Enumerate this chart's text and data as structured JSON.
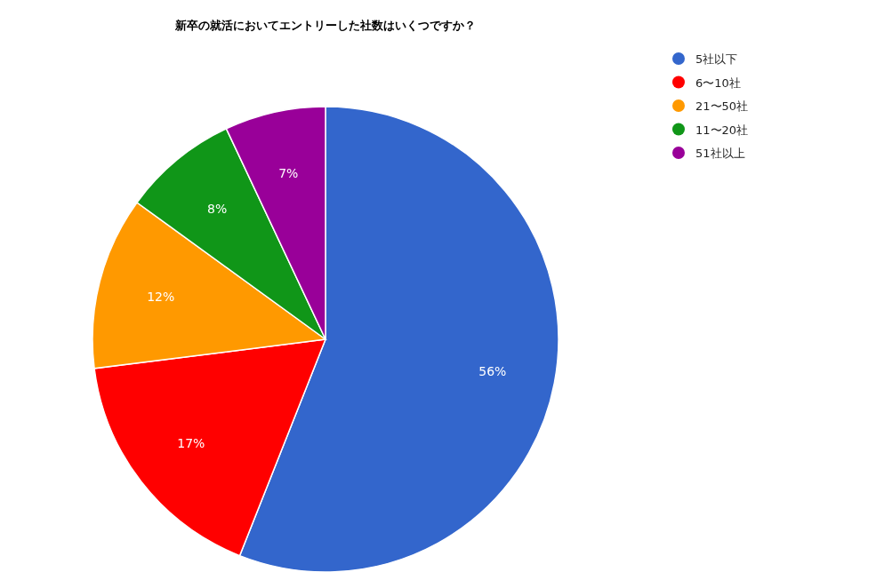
{
  "chart_data": {
    "type": "pie",
    "title": "新卒の就活においてエントリーした社数はいくつですか？",
    "categories": [
      "5社以下",
      "6〜10社",
      "21〜50社",
      "11〜20社",
      "51社以上"
    ],
    "values": [
      56,
      17,
      12,
      8,
      7
    ],
    "colors": [
      "#3366cc",
      "#ff0000",
      "#ff9900",
      "#109618",
      "#990099"
    ],
    "value_labels": [
      "56%",
      "17%",
      "12%",
      "8%",
      "7%"
    ],
    "legend": "top right"
  }
}
